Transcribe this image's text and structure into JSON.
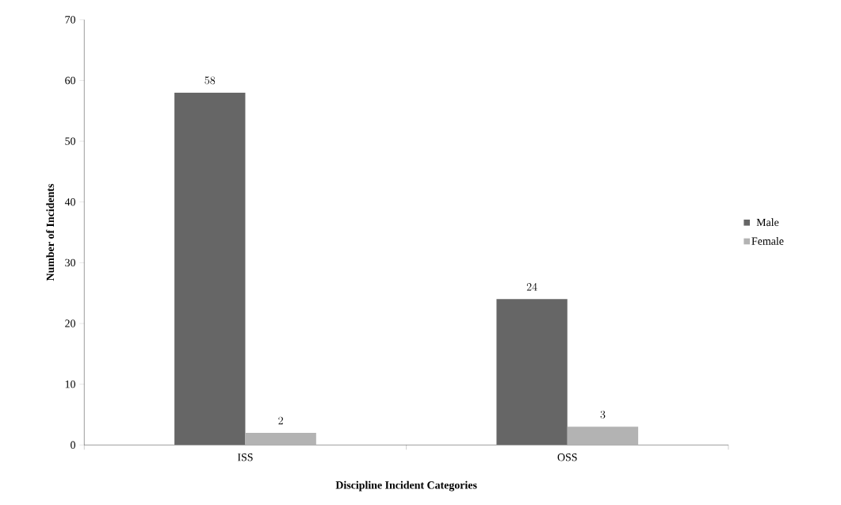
{
  "chart_data": {
    "type": "bar",
    "xlabel": "Discipline Incident Categories",
    "ylabel": "Number of Incidents",
    "categories": [
      "ISS",
      "OSS"
    ],
    "series": [
      {
        "name": "Male",
        "color": "#666666",
        "values": [
          58,
          24
        ]
      },
      {
        "name": "Female",
        "color": "#b3b3b3",
        "values": [
          2,
          3
        ]
      }
    ],
    "ylim": [
      0,
      70
    ],
    "yticks": [
      0,
      10,
      20,
      30,
      40,
      50,
      60,
      70
    ],
    "data_labels": true,
    "legend": "right",
    "grid": false
  }
}
